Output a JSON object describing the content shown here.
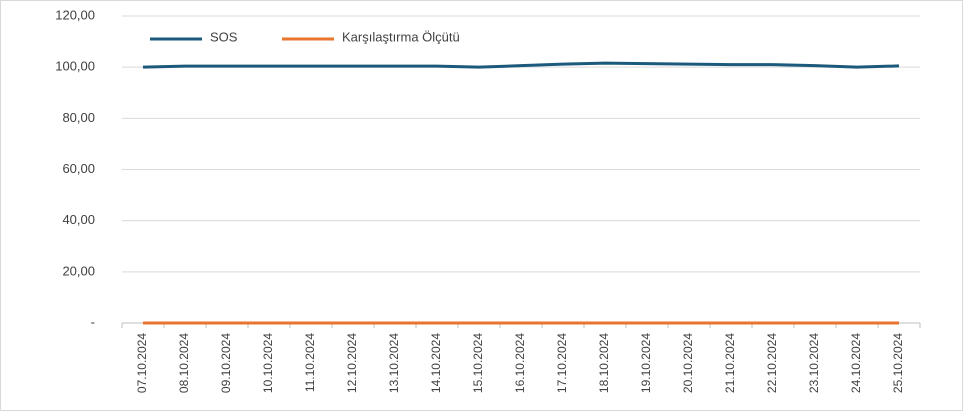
{
  "chart_data": {
    "type": "line",
    "categories": [
      "07.10.2024",
      "08.10.2024",
      "09.10.2024",
      "10.10.2024",
      "11.10.2024",
      "12.10.2024",
      "13.10.2024",
      "14.10.2024",
      "15.10.2024",
      "16.10.2024",
      "17.10.2024",
      "18.10.2024",
      "19.10.2024",
      "20.10.2024",
      "21.10.2024",
      "22.10.2024",
      "23.10.2024",
      "24.10.2024",
      "25.10.2024"
    ],
    "series": [
      {
        "name": "SOS",
        "color": "#1b5a7c",
        "values": [
          100.0,
          100.4,
          100.4,
          100.4,
          100.4,
          100.4,
          100.4,
          100.4,
          100.0,
          100.6,
          101.2,
          101.6,
          101.4,
          101.2,
          101.0,
          101.0,
          100.6,
          100.0,
          100.5
        ]
      },
      {
        "name": "Karşılaştırma Ölçütü",
        "color": "#e8742d",
        "values": [
          0,
          0,
          0,
          0,
          0,
          0,
          0,
          0,
          0,
          0,
          0,
          0,
          0,
          0,
          0,
          0,
          0,
          0,
          0
        ]
      }
    ],
    "ylim": [
      0,
      120
    ],
    "yticks": [
      {
        "value": 0,
        "label": "-"
      },
      {
        "value": 20,
        "label": "20,00"
      },
      {
        "value": 40,
        "label": "40,00"
      },
      {
        "value": 60,
        "label": "60,00"
      },
      {
        "value": 80,
        "label": "80,00"
      },
      {
        "value": 100,
        "label": "100,00"
      },
      {
        "value": 120,
        "label": "120,00"
      }
    ],
    "grid": true,
    "legend": "top-left"
  }
}
